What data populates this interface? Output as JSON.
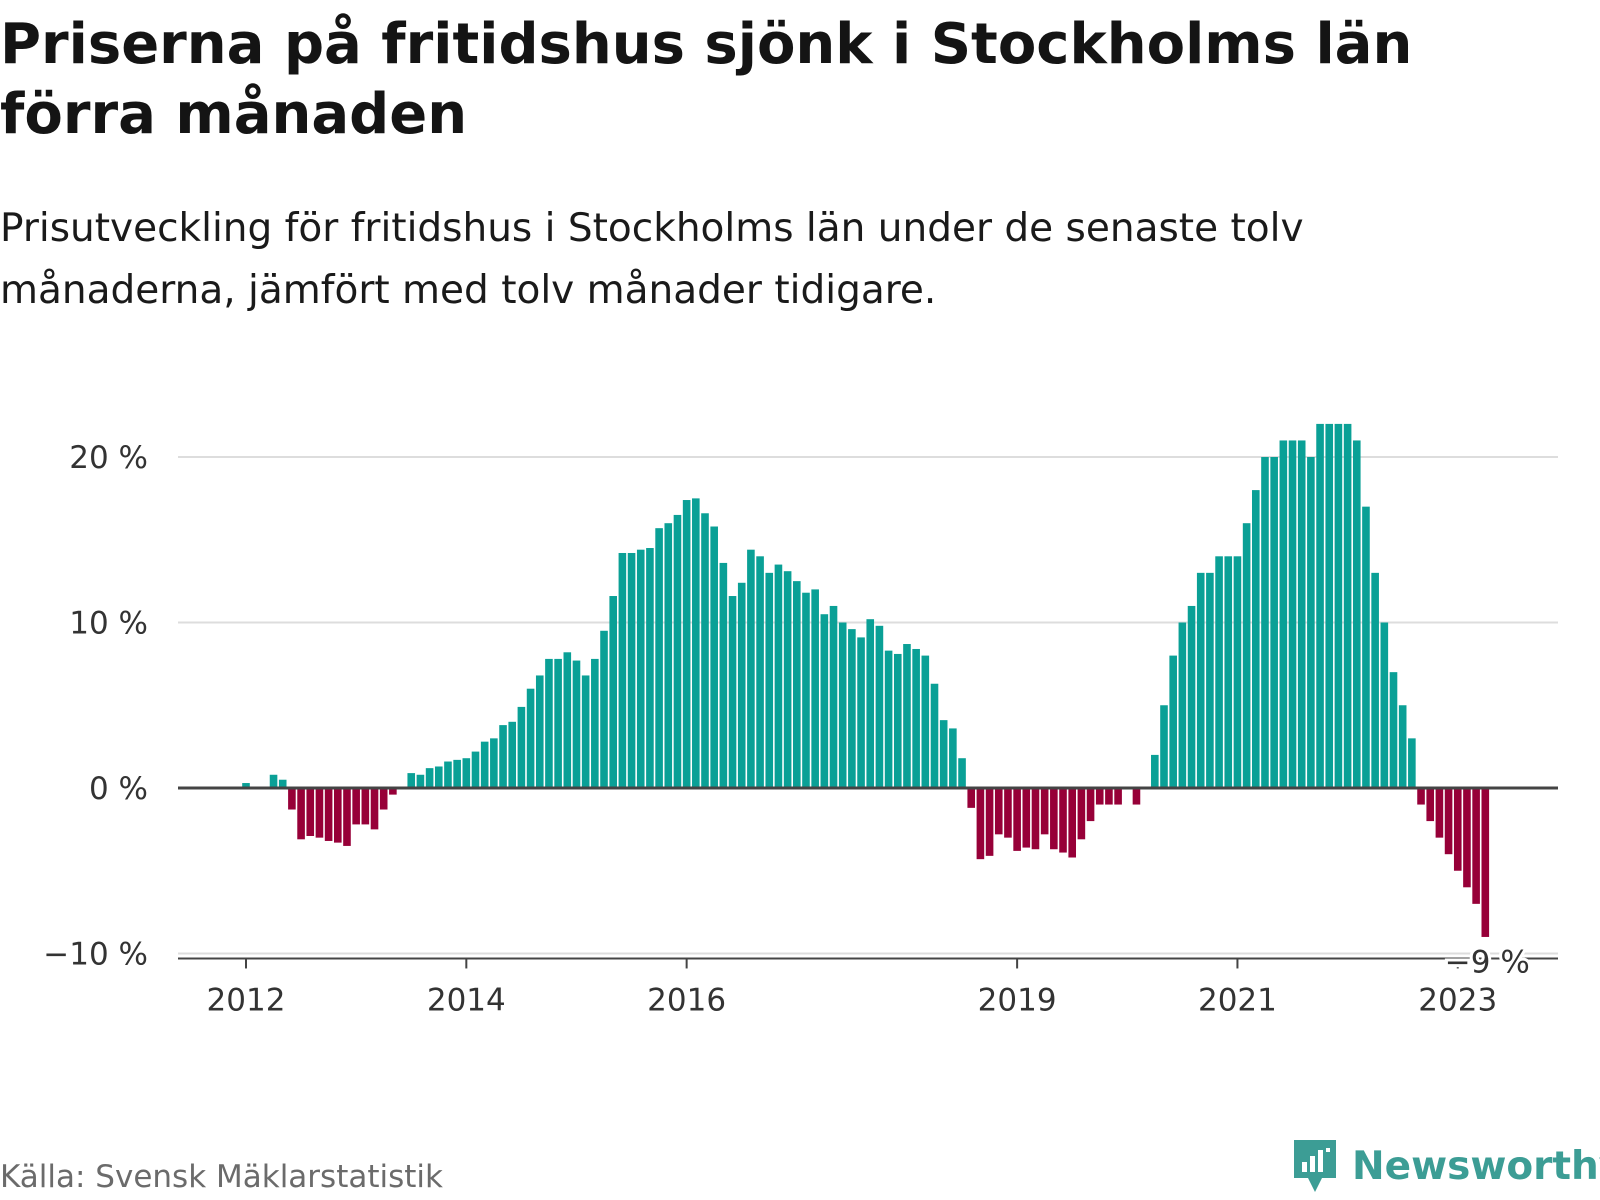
{
  "title": "Priserna på fritidshus sjönk i Stockholms län förra månaden",
  "subtitle": "Prisutveckling för fritidshus i Stockholms län under de senaste tolv månaderna, jämfört med tolv månader tidigare.",
  "source": "Källa: Svensk Mäklarstatistik",
  "brand": "Newsworthy",
  "colors": {
    "positive": "#0aa096",
    "negative": "#970038",
    "grid": "#dddddd",
    "baseline": "#444444",
    "brand": "#3c9d95"
  },
  "chart_data": {
    "type": "bar",
    "title": "Priserna på fritidshus sjönk i Stockholms län förra månaden",
    "xlabel": "",
    "ylabel": "",
    "ylim": [
      -10,
      22
    ],
    "y_ticks": [
      {
        "value": 20,
        "label": "20 %"
      },
      {
        "value": 10,
        "label": "10 %"
      },
      {
        "value": 0,
        "label": "0 %"
      },
      {
        "value": -10,
        "label": "−10 %"
      }
    ],
    "x_ticks": [
      {
        "index": 0,
        "label": "2012"
      },
      {
        "index": 24,
        "label": "2014"
      },
      {
        "index": 48,
        "label": "2016"
      },
      {
        "index": 84,
        "label": "2019"
      },
      {
        "index": 108,
        "label": "2021"
      },
      {
        "index": 132,
        "label": "2023"
      }
    ],
    "annotation": {
      "index": 135,
      "label": "−9 %"
    },
    "series": [
      {
        "name": "Prisutveckling",
        "start": "2012-01",
        "values": [
          0.3,
          0,
          0,
          0.8,
          0.5,
          -1.3,
          -3.1,
          -2.9,
          -3.0,
          -3.2,
          -3.3,
          -3.5,
          -2.2,
          -2.2,
          -2.5,
          -1.3,
          -0.4,
          0,
          0.9,
          0.8,
          1.2,
          1.3,
          1.6,
          1.7,
          1.8,
          2.2,
          2.8,
          3.0,
          3.8,
          4.0,
          4.9,
          6.0,
          6.8,
          7.8,
          7.8,
          8.2,
          7.7,
          6.8,
          7.8,
          9.5,
          11.6,
          14.2,
          14.2,
          14.4,
          14.5,
          15.7,
          16.0,
          16.5,
          17.4,
          17.5,
          16.6,
          15.8,
          13.6,
          11.6,
          12.4,
          14.4,
          14.0,
          13.0,
          13.5,
          13.1,
          12.5,
          11.8,
          12.0,
          10.5,
          11.0,
          10.0,
          9.6,
          9.1,
          10.2,
          9.8,
          8.3,
          8.1,
          8.7,
          8.4,
          8.0,
          6.3,
          4.1,
          3.6,
          1.8,
          -1.2,
          -4.3,
          -4.1,
          -2.8,
          -3.0,
          -3.8,
          -3.6,
          -3.7,
          -2.8,
          -3.7,
          -3.9,
          -4.2,
          -3.1,
          -2.0,
          -1.0,
          -1.0,
          -1.0,
          0,
          -1.0,
          0,
          2.0,
          5.0,
          8.0,
          10.0,
          11.0,
          13.0,
          13.0,
          14.0,
          14.0,
          14.0,
          16.0,
          18.0,
          20.0,
          20.0,
          21.0,
          21.0,
          21.0,
          20.0,
          22.0,
          22.0,
          22.0,
          22.0,
          21.0,
          17.0,
          13.0,
          10.0,
          7.0,
          5.0,
          3.0,
          -1.0,
          -2.0,
          -3.0,
          -4.0,
          -5.0,
          -6.0,
          -7.0,
          -9.0
        ]
      }
    ]
  }
}
